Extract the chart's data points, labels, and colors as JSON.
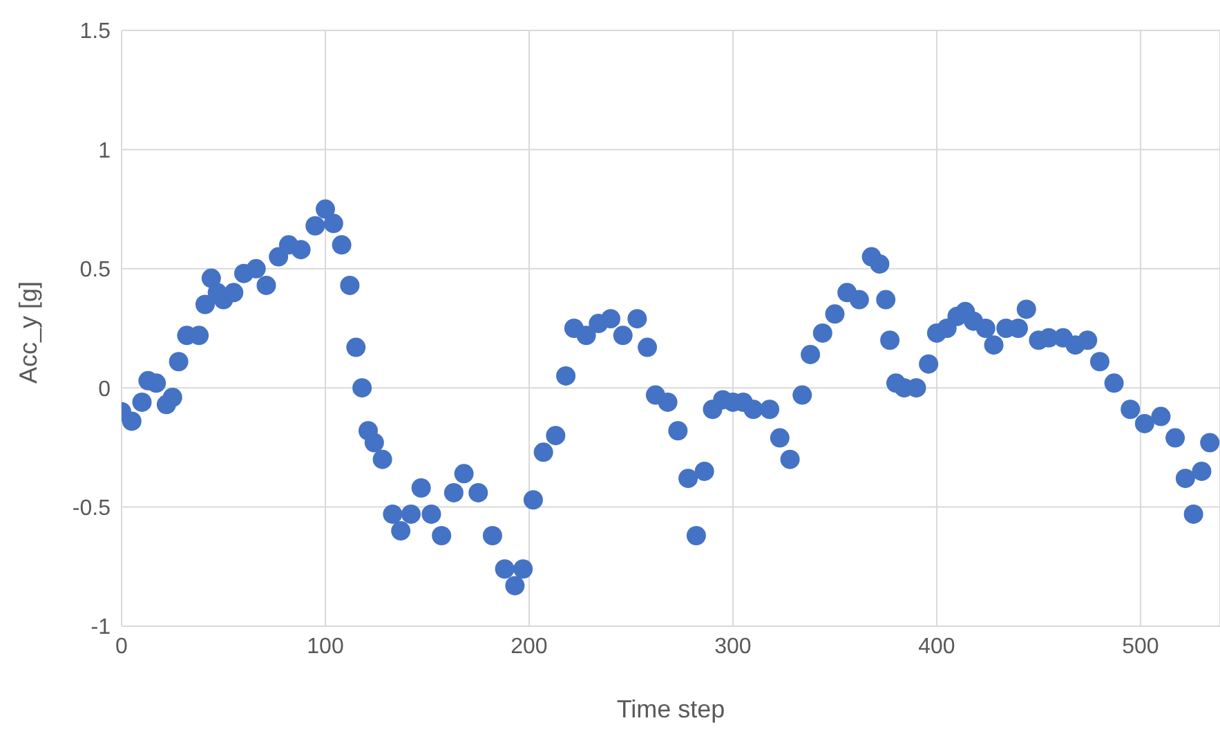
{
  "chart_data": {
    "type": "scatter",
    "xlabel": "Time step",
    "ylabel": "Acc_y [g]",
    "xlim": [
      0,
      539
    ],
    "xticks": [
      0,
      100,
      200,
      300,
      400,
      500
    ],
    "ylim": [
      -1,
      1.5
    ],
    "yticks": [
      -1,
      -0.5,
      0,
      0.5,
      1,
      1.5
    ],
    "grid": true,
    "marker": "circle",
    "legend": false,
    "series": [
      {
        "color": "#4472c4",
        "x": [
          0,
          5,
          10,
          13,
          17,
          22,
          25,
          28,
          32,
          38,
          41,
          44,
          47,
          50,
          55,
          60,
          66,
          71,
          77,
          82,
          88,
          95,
          100,
          104,
          108,
          112,
          115,
          118,
          121,
          124,
          128,
          133,
          137,
          142,
          147,
          152,
          157,
          163,
          168,
          175,
          182,
          188,
          193,
          197,
          202,
          207,
          213,
          218,
          222,
          228,
          234,
          240,
          246,
          253,
          258,
          262,
          268,
          273,
          278,
          282,
          286,
          290,
          295,
          300,
          305,
          310,
          318,
          323,
          328,
          334,
          338,
          344,
          350,
          356,
          362,
          368,
          372,
          375,
          377,
          380,
          384,
          390,
          396,
          400,
          405,
          410,
          414,
          418,
          424,
          428,
          434,
          440,
          444,
          450,
          455,
          462,
          468,
          474,
          480,
          487,
          495,
          502,
          510,
          517,
          522,
          526,
          530,
          534
        ],
        "values": [
          -0.1,
          -0.14,
          -0.06,
          0.03,
          0.02,
          -0.07,
          -0.04,
          0.11,
          0.22,
          0.22,
          0.35,
          0.46,
          0.4,
          0.37,
          0.4,
          0.48,
          0.5,
          0.43,
          0.55,
          0.6,
          0.58,
          0.68,
          0.75,
          0.69,
          0.6,
          0.43,
          0.17,
          0,
          -0.18,
          -0.23,
          -0.3,
          -0.53,
          -0.6,
          -0.53,
          -0.42,
          -0.53,
          -0.62,
          -0.44,
          -0.36,
          -0.44,
          -0.62,
          -0.76,
          -0.83,
          -0.76,
          -0.47,
          -0.27,
          -0.2,
          0.05,
          0.25,
          0.22,
          0.27,
          0.29,
          0.22,
          0.29,
          0.17,
          -0.03,
          -0.06,
          -0.18,
          -0.38,
          -0.62,
          -0.35,
          -0.09,
          -0.05,
          -0.06,
          -0.06,
          -0.09,
          -0.09,
          -0.21,
          -0.3,
          -0.03,
          0.14,
          0.23,
          0.31,
          0.4,
          0.37,
          0.55,
          0.52,
          0.37,
          0.2,
          0.02,
          0,
          0,
          0.1,
          0.23,
          0.25,
          0.3,
          0.32,
          0.28,
          0.25,
          0.18,
          0.25,
          0.25,
          0.33,
          0.2,
          0.21,
          0.21,
          0.18,
          0.2,
          0.11,
          0.02,
          -0.09,
          -0.15,
          -0.12,
          -0.21,
          -0.38,
          -0.53,
          -0.35,
          -0.23
        ]
      }
    ]
  }
}
